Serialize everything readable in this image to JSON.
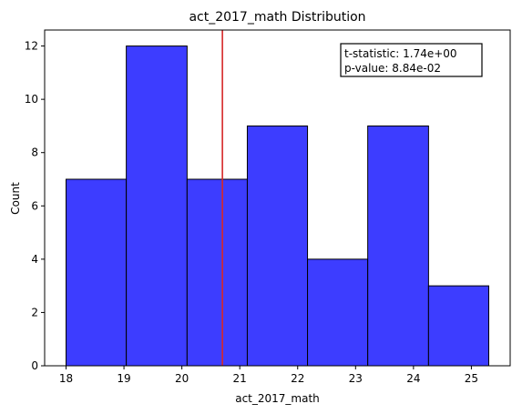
{
  "chart_data": {
    "type": "bar",
    "title": "act_2017_math Distribution",
    "xlabel": "act_2017_math",
    "ylabel": "Count",
    "bins": [
      {
        "start": 18.0,
        "end": 19.04,
        "count": 7
      },
      {
        "start": 19.04,
        "end": 20.09,
        "count": 12
      },
      {
        "start": 20.09,
        "end": 21.13,
        "count": 7
      },
      {
        "start": 21.13,
        "end": 22.17,
        "count": 9
      },
      {
        "start": 22.17,
        "end": 23.21,
        "count": 4
      },
      {
        "start": 23.21,
        "end": 24.26,
        "count": 9
      },
      {
        "start": 24.26,
        "end": 25.3,
        "count": 3
      }
    ],
    "xlim": [
      17.63,
      25.67
    ],
    "ylim": [
      0,
      12.6
    ],
    "xticks": [
      "18",
      "19",
      "20",
      "21",
      "22",
      "23",
      "24",
      "25"
    ],
    "yticks": [
      "0",
      "2",
      "4",
      "6",
      "8",
      "10",
      "12"
    ],
    "vline": {
      "x": 20.7,
      "color": "#d62728"
    },
    "bar_color": "#3333ff",
    "grid": false,
    "annotation": {
      "line1": "t-statistic:  1.74e+00",
      "line2": "p-value:  8.84e-02"
    }
  }
}
